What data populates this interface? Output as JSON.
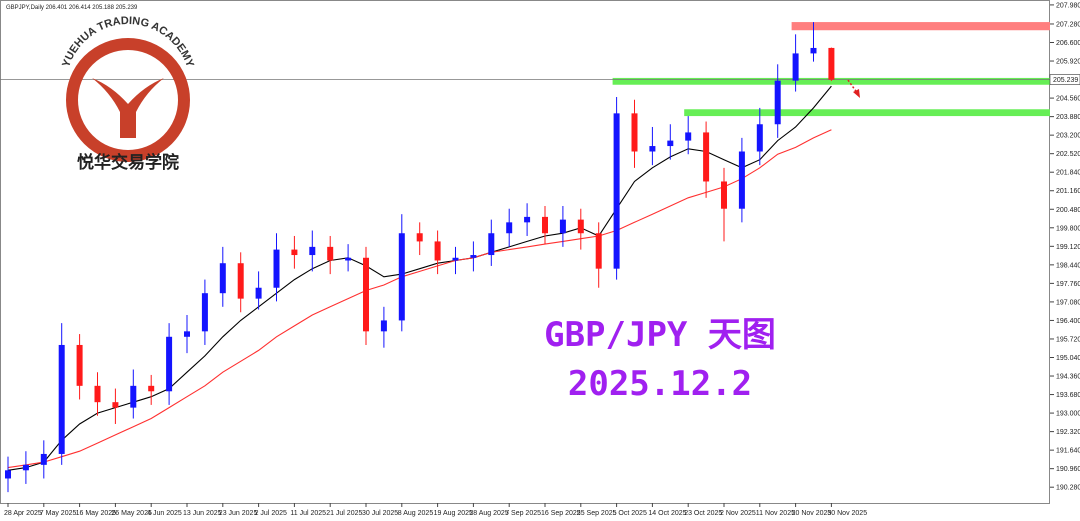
{
  "header": "GBPJPY,Daily 206.401 206.414 205.188 205.239",
  "logo": {
    "arc_text": "YUEHUA TRADING ACADEMY",
    "name": "悦华交易学院"
  },
  "chart_data": {
    "type": "candlestick",
    "title": "GBP/JPY 天图",
    "subtitle": "2025.12.2",
    "categories": [
      "28 Apr 2025",
      null,
      "7 May 2025",
      null,
      "16 May 2025",
      null,
      "26 May 2025",
      null,
      "4 Jun 2025",
      null,
      "13 Jun 2025",
      null,
      "23 Jun 2025",
      null,
      "2 Jul 2025",
      null,
      "11 Jul 2025",
      null,
      "21 Jul 2025",
      null,
      "30 Jul 2025",
      null,
      "8 Aug 2025",
      null,
      "19 Aug 2025",
      null,
      "28 Aug 2025",
      null,
      "7 Sep 2025",
      null,
      "16 Sep 2025",
      null,
      "25 Sep 2025",
      null,
      "5 Oct 2025",
      null,
      "14 Oct 2025",
      null,
      "23 Oct 2025",
      null,
      "2 Nov 2025",
      null,
      "11 Nov 2025",
      null,
      "20 Nov 2025",
      null,
      "30 Nov 2025"
    ],
    "open": [
      190.6,
      190.9,
      191.1,
      191.5,
      195.5,
      194.0,
      193.4,
      193.2,
      194.0,
      193.8,
      195.8,
      196.0,
      197.4,
      198.5,
      197.2,
      197.6,
      199.0,
      198.8,
      199.1,
      198.6,
      198.7,
      196.0,
      196.4,
      199.6,
      199.3,
      198.6,
      198.7,
      198.8,
      199.6,
      200.0,
      200.2,
      199.6,
      200.1,
      199.6,
      198.3,
      204.0,
      202.6,
      202.8,
      203.0,
      203.3,
      201.5,
      200.5,
      202.6,
      203.6,
      205.2,
      206.2,
      206.401
    ],
    "high": [
      191.4,
      191.6,
      192.0,
      196.3,
      195.9,
      194.5,
      193.9,
      194.6,
      194.4,
      196.3,
      196.6,
      197.9,
      199.1,
      198.9,
      198.2,
      199.6,
      199.5,
      199.7,
      199.5,
      199.2,
      199.1,
      196.9,
      200.3,
      200.0,
      199.7,
      199.1,
      199.3,
      200.1,
      200.5,
      200.7,
      200.6,
      200.6,
      200.5,
      200.0,
      204.6,
      204.5,
      203.5,
      203.6,
      203.9,
      203.7,
      202.0,
      203.1,
      204.2,
      205.8,
      206.9,
      207.35,
      206.414
    ],
    "low": [
      190.1,
      190.4,
      190.6,
      191.1,
      193.5,
      192.9,
      192.6,
      192.8,
      193.3,
      193.3,
      195.2,
      195.5,
      196.9,
      196.7,
      196.8,
      197.1,
      198.3,
      198.2,
      198.1,
      198.2,
      195.5,
      195.4,
      196.0,
      198.8,
      198.1,
      198.1,
      198.2,
      198.4,
      199.1,
      199.5,
      199.2,
      199.1,
      199.0,
      197.6,
      197.9,
      202.0,
      202.1,
      202.3,
      202.5,
      200.9,
      199.3,
      200.0,
      202.1,
      203.1,
      204.8,
      205.9,
      205.188
    ],
    "close": [
      190.9,
      191.1,
      191.5,
      195.5,
      194.0,
      193.4,
      193.2,
      194.0,
      193.8,
      195.8,
      196.0,
      197.4,
      198.5,
      197.2,
      197.6,
      199.0,
      198.8,
      199.1,
      198.6,
      198.7,
      196.0,
      196.4,
      199.6,
      199.3,
      198.6,
      198.7,
      198.8,
      199.6,
      200.0,
      200.2,
      199.6,
      200.1,
      199.6,
      198.3,
      204.0,
      202.6,
      202.8,
      203.0,
      203.3,
      201.5,
      200.5,
      202.6,
      203.6,
      205.2,
      206.2,
      206.4,
      205.239
    ],
    "up_color": "#1414ff",
    "down_color": "#ff1a1a",
    "series": [
      {
        "color": "#000000",
        "values": [
          190.9,
          191.0,
          191.2,
          192.0,
          192.6,
          193.0,
          193.2,
          193.4,
          193.6,
          193.9,
          194.5,
          195.1,
          195.8,
          196.4,
          196.9,
          197.4,
          197.9,
          198.3,
          198.6,
          198.7,
          198.4,
          198.0,
          198.1,
          198.3,
          198.5,
          198.6,
          198.7,
          198.9,
          199.1,
          199.3,
          199.5,
          199.6,
          199.8,
          199.5,
          200.5,
          201.5,
          202.0,
          202.4,
          202.7,
          202.6,
          202.3,
          202.0,
          202.3,
          203.0,
          203.5,
          204.2,
          205.0
        ]
      },
      {
        "color": "#ff3030",
        "values": [
          191.0,
          191.1,
          191.2,
          191.4,
          191.6,
          191.9,
          192.2,
          192.5,
          192.8,
          193.2,
          193.6,
          194.0,
          194.5,
          194.9,
          195.3,
          195.8,
          196.2,
          196.6,
          196.9,
          197.2,
          197.5,
          197.7,
          198.0,
          198.2,
          198.4,
          198.6,
          198.7,
          198.9,
          199.0,
          199.1,
          199.2,
          199.3,
          199.4,
          199.5,
          199.7,
          200.0,
          200.3,
          200.6,
          200.9,
          201.1,
          201.3,
          201.6,
          202.0,
          202.5,
          202.75,
          203.1,
          203.4
        ]
      }
    ],
    "zones": [
      {
        "low": 207.05,
        "high": 207.35,
        "from": 44,
        "color": "#ff7f7f"
      },
      {
        "low": 205.05,
        "high": 205.3,
        "from": 34,
        "color": "#66ee55"
      },
      {
        "low": 203.9,
        "high": 204.15,
        "from": 38,
        "color": "#66ee55"
      }
    ],
    "price_line": 205.239,
    "ylim": [
      189.7,
      208.16
    ],
    "yticks": [
      {
        "value": 190.28,
        "label": "190.280"
      },
      {
        "value": 190.96,
        "label": "190.960"
      },
      {
        "value": 191.64,
        "label": "191.640"
      },
      {
        "value": 192.32,
        "label": "192.320"
      },
      {
        "value": 193,
        "label": "193.000"
      },
      {
        "value": 193.68,
        "label": "193.680"
      },
      {
        "value": 194.36,
        "label": "194.360"
      },
      {
        "value": 195.04,
        "label": "195.040"
      },
      {
        "value": 195.72,
        "label": "195.720"
      },
      {
        "value": 196.4,
        "label": "196.400"
      },
      {
        "value": 197.08,
        "label": "197.080"
      },
      {
        "value": 197.76,
        "label": "197.760"
      },
      {
        "value": 198.44,
        "label": "198.440"
      },
      {
        "value": 199.12,
        "label": "199.120"
      },
      {
        "value": 199.8,
        "label": "199.800"
      },
      {
        "value": 200.48,
        "label": "200.480"
      },
      {
        "value": 201.16,
        "label": "201.160"
      },
      {
        "value": 201.84,
        "label": "201.840"
      },
      {
        "value": 202.52,
        "label": "202.520"
      },
      {
        "value": 203.2,
        "label": "203.200"
      },
      {
        "value": 203.88,
        "label": "203.880"
      },
      {
        "value": 204.56,
        "label": "204.560"
      },
      {
        "value": 205.92,
        "label": "205.920"
      },
      {
        "value": 206.6,
        "label": "206.600"
      },
      {
        "value": 207.28,
        "label": "207.280"
      },
      {
        "value": 207.98,
        "label": "207.980"
      }
    ]
  }
}
